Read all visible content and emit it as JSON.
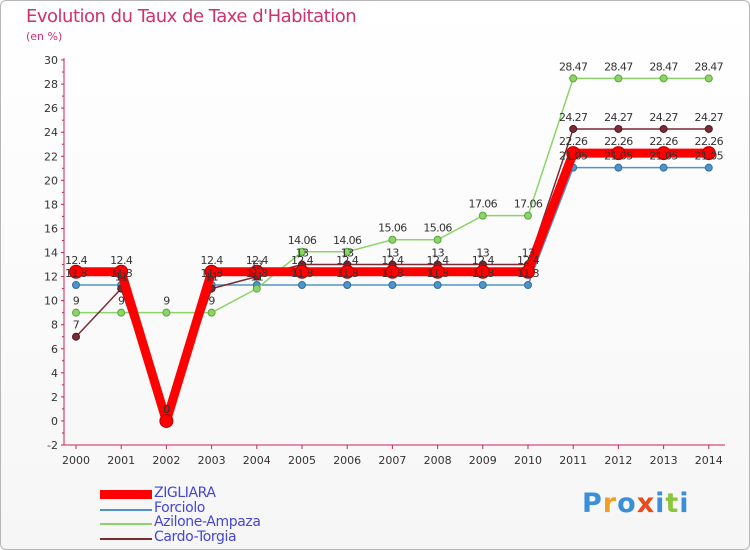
{
  "chart_data": {
    "type": "line",
    "title": "Evolution du Taux de Taxe d'Habitation",
    "unit_label": "(en %)",
    "xlabel": "",
    "ylabel": "",
    "categories": [
      "2000",
      "2001",
      "2002",
      "2003",
      "2004",
      "2005",
      "2006",
      "2007",
      "2008",
      "2009",
      "2010",
      "2011",
      "2012",
      "2013",
      "2014"
    ],
    "ylim": [
      -2,
      30
    ],
    "yticks": [
      -2,
      0,
      2,
      4,
      6,
      8,
      10,
      12,
      14,
      16,
      18,
      20,
      22,
      24,
      26,
      28,
      30
    ],
    "grid": false,
    "series": [
      {
        "name": "Forciolo",
        "color": "#4f94c8",
        "values": [
          11.3,
          11.3,
          0,
          11.3,
          11.3,
          11.3,
          11.3,
          11.3,
          11.3,
          11.3,
          11.3,
          21.05,
          21.05,
          21.05,
          21.05
        ],
        "labels": [
          "11.3",
          "11.3",
          "0",
          "11.3",
          "11.3",
          "11.3",
          "11.3",
          "11.3",
          "11.3",
          "11.3",
          "11.3",
          "21.05",
          "21.05",
          "21.05",
          "21.05"
        ]
      },
      {
        "name": "Azilone-Ampaza",
        "color": "#8cd46a",
        "values": [
          9,
          9,
          9,
          9,
          11,
          14.06,
          14.06,
          15.06,
          15.06,
          17.06,
          17.06,
          28.47,
          28.47,
          28.47,
          28.47
        ],
        "labels": [
          "9",
          "9",
          "9",
          "9",
          "11",
          "14.06",
          "14.06",
          "15.06",
          "15.06",
          "17.06",
          "17.06",
          "28.47",
          "28.47",
          "28.47",
          "28.47"
        ]
      },
      {
        "name": "Cardo-Torgia",
        "color": "#7a2b33",
        "values": [
          7,
          11,
          0,
          11,
          12,
          13,
          13,
          13,
          13,
          13,
          13,
          24.27,
          24.27,
          24.27,
          24.27
        ],
        "labels": [
          "7",
          "11",
          "0",
          "11",
          "12",
          "13",
          "13",
          "13",
          "13",
          "13",
          "13",
          "24.27",
          "24.27",
          "24.27",
          "24.27"
        ]
      },
      {
        "name": "ZIGLIARA",
        "color": "#ff0000",
        "values": [
          12.4,
          12.4,
          0,
          12.4,
          12.4,
          12.4,
          12.4,
          12.4,
          12.4,
          12.4,
          12.4,
          22.26,
          22.26,
          22.26,
          22.26
        ],
        "labels": [
          "12.4",
          "12.4",
          "0",
          "12.4",
          "12.4",
          "12.4",
          "12.4",
          "12.4",
          "12.4",
          "12.4",
          "12.4",
          "22.26",
          "22.26",
          "22.26",
          "22.26"
        ]
      }
    ]
  },
  "legend": [
    {
      "label": "ZIGLIARA",
      "color": "#ff0000"
    },
    {
      "label": "Forciolo",
      "color": "#4f94c8"
    },
    {
      "label": "Azilone-Ampaza",
      "color": "#8cd46a"
    },
    {
      "label": "Cardo-Torgia",
      "color": "#7a2b33"
    }
  ],
  "logo": {
    "letters": [
      "P",
      "r",
      "o",
      "x",
      "i",
      "t",
      "i"
    ],
    "colors": [
      "#3b8fd8",
      "#f0a020",
      "#3b8fd8",
      "#e84b1c",
      "#3b8fd8",
      "#8cc63f",
      "#3b8fd8"
    ]
  }
}
